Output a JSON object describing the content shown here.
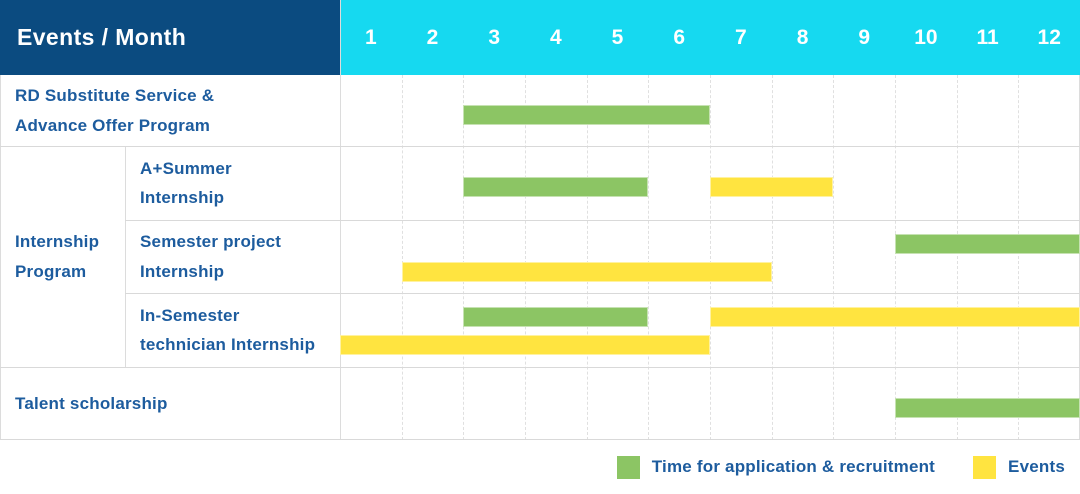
{
  "header": {
    "label": "Events / Month",
    "months": [
      "1",
      "2",
      "3",
      "4",
      "5",
      "6",
      "7",
      "8",
      "9",
      "10",
      "11",
      "12"
    ]
  },
  "colors": {
    "header_bg": "#0b4b80",
    "month_header_bg": "#16d9f0",
    "header_text": "#ffffff",
    "label_text": "#1d5c9e",
    "application": "#8cc564",
    "events": "#ffe440",
    "grid_line": "#dcdcdc"
  },
  "chart_data": {
    "type": "gantt",
    "x_axis": {
      "label": "Month",
      "range": [
        1,
        12
      ],
      "ticks": [
        "1",
        "2",
        "3",
        "4",
        "5",
        "6",
        "7",
        "8",
        "9",
        "10",
        "11",
        "12"
      ]
    },
    "grid": "on",
    "legend_position": "bottom-right",
    "group_label": "Internship Program",
    "group_label_lines": [
      "Internship",
      "Program"
    ],
    "rows": [
      {
        "label": "RD Substitute Service & Advance Offer Program",
        "label_lines": [
          "RD Substitute Service &",
          "Advance Offer Program"
        ],
        "group": null,
        "bars": [
          {
            "series": "application",
            "start_month": 3,
            "end_month": 6,
            "lane": "center"
          }
        ]
      },
      {
        "label": "A+Summer Internship",
        "label_lines": [
          "A+Summer",
          "Internship"
        ],
        "group": "Internship Program",
        "bars": [
          {
            "series": "application",
            "start_month": 3,
            "end_month": 5,
            "lane": "center"
          },
          {
            "series": "events",
            "start_month": 7,
            "end_month": 8,
            "lane": "center"
          }
        ]
      },
      {
        "label": "Semester project Internship",
        "label_lines": [
          "Semester project",
          "Internship"
        ],
        "group": "Internship Program",
        "bars": [
          {
            "series": "application",
            "start_month": 10,
            "end_month": 12,
            "lane": "top"
          },
          {
            "series": "events",
            "start_month": 2,
            "end_month": 7,
            "lane": "bottom"
          }
        ]
      },
      {
        "label": "In-Semester technician Internship",
        "label_lines": [
          "In-Semester",
          "technician Internship"
        ],
        "group": "Internship Program",
        "bars": [
          {
            "series": "application",
            "start_month": 3,
            "end_month": 5,
            "lane": "top"
          },
          {
            "series": "events",
            "start_month": 7,
            "end_month": 12,
            "lane": "top"
          },
          {
            "series": "events",
            "start_month": 1,
            "end_month": 6,
            "lane": "bottom"
          }
        ]
      },
      {
        "label": "Talent scholarship",
        "label_lines": [
          "Talent scholarship"
        ],
        "group": null,
        "bars": [
          {
            "series": "application",
            "start_month": 10,
            "end_month": 12,
            "lane": "center"
          }
        ]
      }
    ]
  },
  "legend": {
    "items": [
      {
        "series": "application",
        "label": "Time for application & recruitment"
      },
      {
        "series": "events",
        "label": "Events"
      }
    ]
  }
}
